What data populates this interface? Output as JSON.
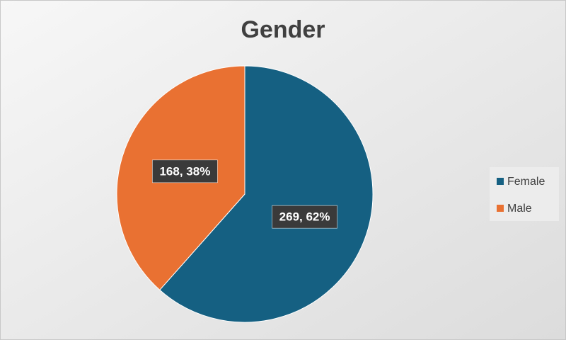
{
  "chart_data": {
    "type": "pie",
    "title": "Gender",
    "categories": [
      "Female",
      "Male"
    ],
    "values": [
      269,
      168
    ],
    "value_labels": [
      "269, 62%",
      "168, 38%"
    ],
    "colors": [
      "#156082",
      "#e97132"
    ],
    "legend": "right"
  }
}
